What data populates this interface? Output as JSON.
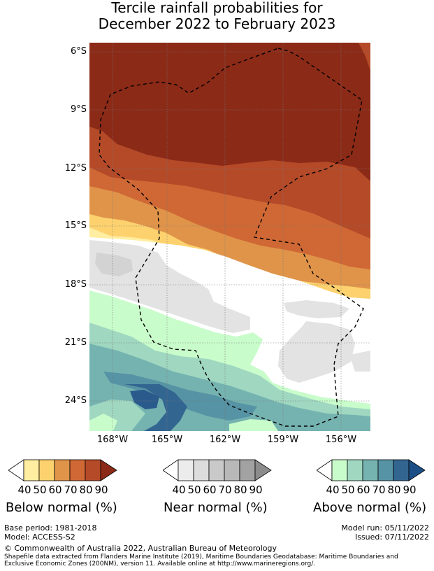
{
  "title_line1": "Tercile rainfall probabilities for",
  "title_line2": "December 2022 to February 2023",
  "y_ticks": [
    "6°S",
    "9°S",
    "12°S",
    "15°S",
    "18°S",
    "21°S",
    "24°S"
  ],
  "x_ticks": [
    "168°W",
    "165°W",
    "162°W",
    "159°W",
    "156°W"
  ],
  "legends": [
    {
      "title": "Below normal (%)",
      "labels": [
        "40",
        "50",
        "60",
        "70",
        "80",
        "90"
      ],
      "colors": [
        "#ffeea1",
        "#fdd26e",
        "#e0944a",
        "#cf6834",
        "#b44a28",
        "#8b2a17"
      ]
    },
    {
      "title": "Near normal (%)",
      "labels": [
        "40",
        "50",
        "60",
        "70",
        "80",
        "90"
      ],
      "colors": [
        "#ececec",
        "#dcdcdc",
        "#c9c9c9",
        "#b8b8b8",
        "#a2a2a2",
        "#8c8c8c"
      ]
    },
    {
      "title": "Above normal (%)",
      "labels": [
        "40",
        "50",
        "60",
        "70",
        "80",
        "90"
      ],
      "colors": [
        "#c9fccb",
        "#9fd7c0",
        "#75b3b0",
        "#5693a4",
        "#336591",
        "#1d4f87"
      ]
    }
  ],
  "footer": {
    "base_period": "Base period: 1981-2018",
    "model": "Model: ACCESS-S2",
    "model_run": "Model run: 05/11/2022",
    "issued": "Issued: 07/11/2022",
    "copyright": "© Commonwealth of Australia 2022, Australian Bureau of Meteorology",
    "shapefile_1": "Shapefile data extracted from Flanders Marine Institute (2019), Maritime Boundaries Geodatabase: Maritime Boundaries and",
    "shapefile_2": "Exclusive Economic Zones (200NM), version 11. Available online at http://www.marineregions.org/."
  }
}
